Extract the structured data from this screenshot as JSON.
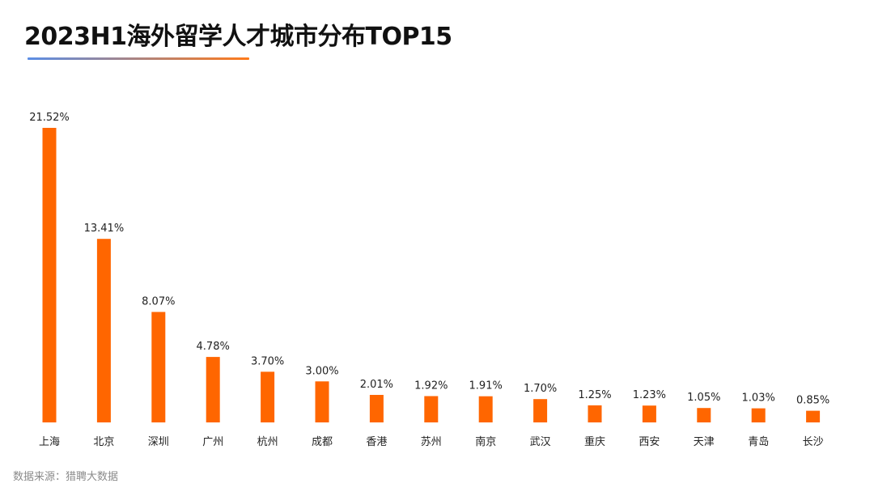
{
  "title": "2023H1海外留学人才城市分布TOP15",
  "source": "数据来源：猎聘大数据",
  "colors": {
    "bar": "#ff6600",
    "underline_start": "#5b8ee6",
    "underline_end": "#ff7a1a"
  },
  "chart_data": {
    "type": "bar",
    "title": "2023H1海外留学人才城市分布TOP15",
    "categories": [
      "上海",
      "北京",
      "深圳",
      "广州",
      "杭州",
      "成都",
      "香港",
      "苏州",
      "南京",
      "武汉",
      "重庆",
      "西安",
      "天津",
      "青岛",
      "长沙"
    ],
    "values": [
      21.52,
      13.41,
      8.07,
      4.78,
      3.7,
      3.0,
      2.01,
      1.92,
      1.91,
      1.7,
      1.25,
      1.23,
      1.05,
      1.03,
      0.85
    ],
    "value_labels": [
      "21.52%",
      "13.41%",
      "8.07%",
      "4.78%",
      "3.70%",
      "3.00%",
      "2.01%",
      "1.92%",
      "1.91%",
      "1.70%",
      "1.25%",
      "1.23%",
      "1.05%",
      "1.03%",
      "0.85%"
    ],
    "xlabel": "",
    "ylabel": "",
    "ylim": [
      0,
      21.52
    ],
    "grid": false,
    "legend": "none"
  }
}
